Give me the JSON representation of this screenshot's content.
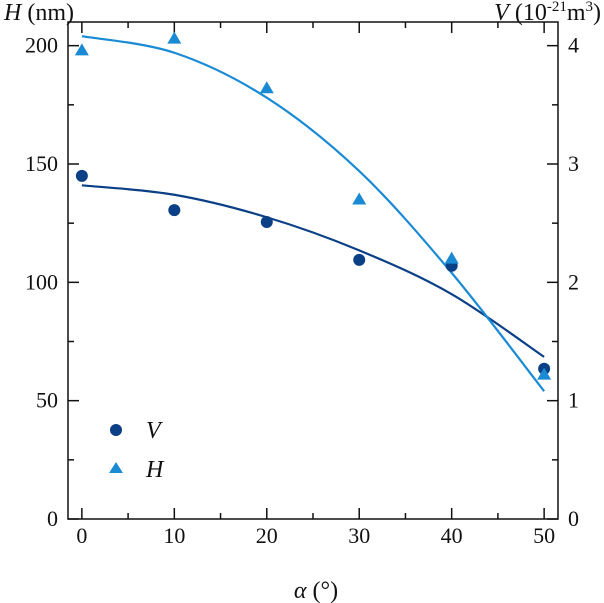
{
  "chart_data": {
    "type": "scatter",
    "xlabel": "α (°)",
    "ylabel_left": "H (nm)",
    "ylabel_right": "V (10⁻²¹m³)",
    "xlim": [
      -1.5,
      51.5
    ],
    "ylim_left": [
      0,
      210
    ],
    "ylim_right": [
      0,
      4.2
    ],
    "x_ticks": [
      0,
      10,
      20,
      30,
      40,
      50
    ],
    "y_ticks_left": [
      0,
      50,
      100,
      150,
      200
    ],
    "y_ticks_right": [
      0,
      1,
      2,
      3,
      4
    ],
    "grid": false,
    "legend_position": "bottom-left",
    "series": [
      {
        "name": "V",
        "axis": "right",
        "marker": "circle",
        "color": "#0b3f86",
        "points": [
          [
            0,
            2.9
          ],
          [
            10,
            2.61
          ],
          [
            20,
            2.51
          ],
          [
            30,
            2.19
          ],
          [
            40,
            2.14
          ],
          [
            50,
            1.27
          ]
        ],
        "fit": [
          [
            0,
            2.82
          ],
          [
            10,
            2.74
          ],
          [
            20,
            2.55
          ],
          [
            30,
            2.27
          ],
          [
            40,
            1.9
          ],
          [
            50,
            1.37
          ]
        ]
      },
      {
        "name": "H",
        "axis": "left",
        "marker": "triangle",
        "color": "#1a8ad4",
        "points": [
          [
            0,
            198
          ],
          [
            10,
            203
          ],
          [
            20,
            182
          ],
          [
            30,
            135
          ],
          [
            40,
            110
          ],
          [
            50,
            61
          ]
        ],
        "fit": [
          [
            0,
            204
          ],
          [
            10,
            197
          ],
          [
            20,
            178
          ],
          [
            30,
            147
          ],
          [
            40,
            104
          ],
          [
            50,
            54
          ]
        ]
      }
    ]
  }
}
